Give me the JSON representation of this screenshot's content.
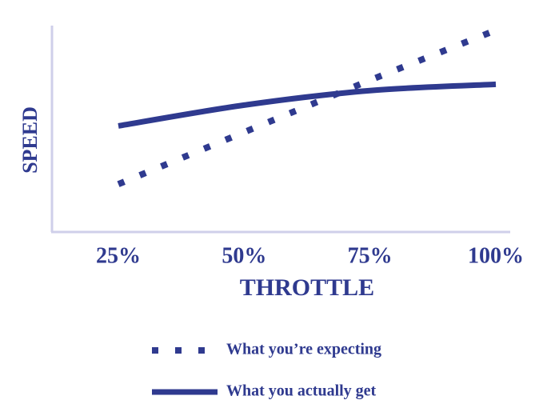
{
  "chart_data": {
    "type": "line",
    "x_label": "THROTTLE",
    "y_label": "SPEED",
    "categories": [
      "25%",
      "50%",
      "75%",
      "100%"
    ],
    "ylim": [
      0,
      100
    ],
    "series": [
      {
        "name": "What you’re expecting",
        "color": "#2f3a8f",
        "style": "dotted",
        "values": [
          23,
          48,
          73,
          97
        ]
      },
      {
        "name": "What you actually get",
        "color": "#2f3a8f",
        "style": "solid",
        "values": [
          51,
          61,
          68,
          71
        ]
      }
    ]
  }
}
